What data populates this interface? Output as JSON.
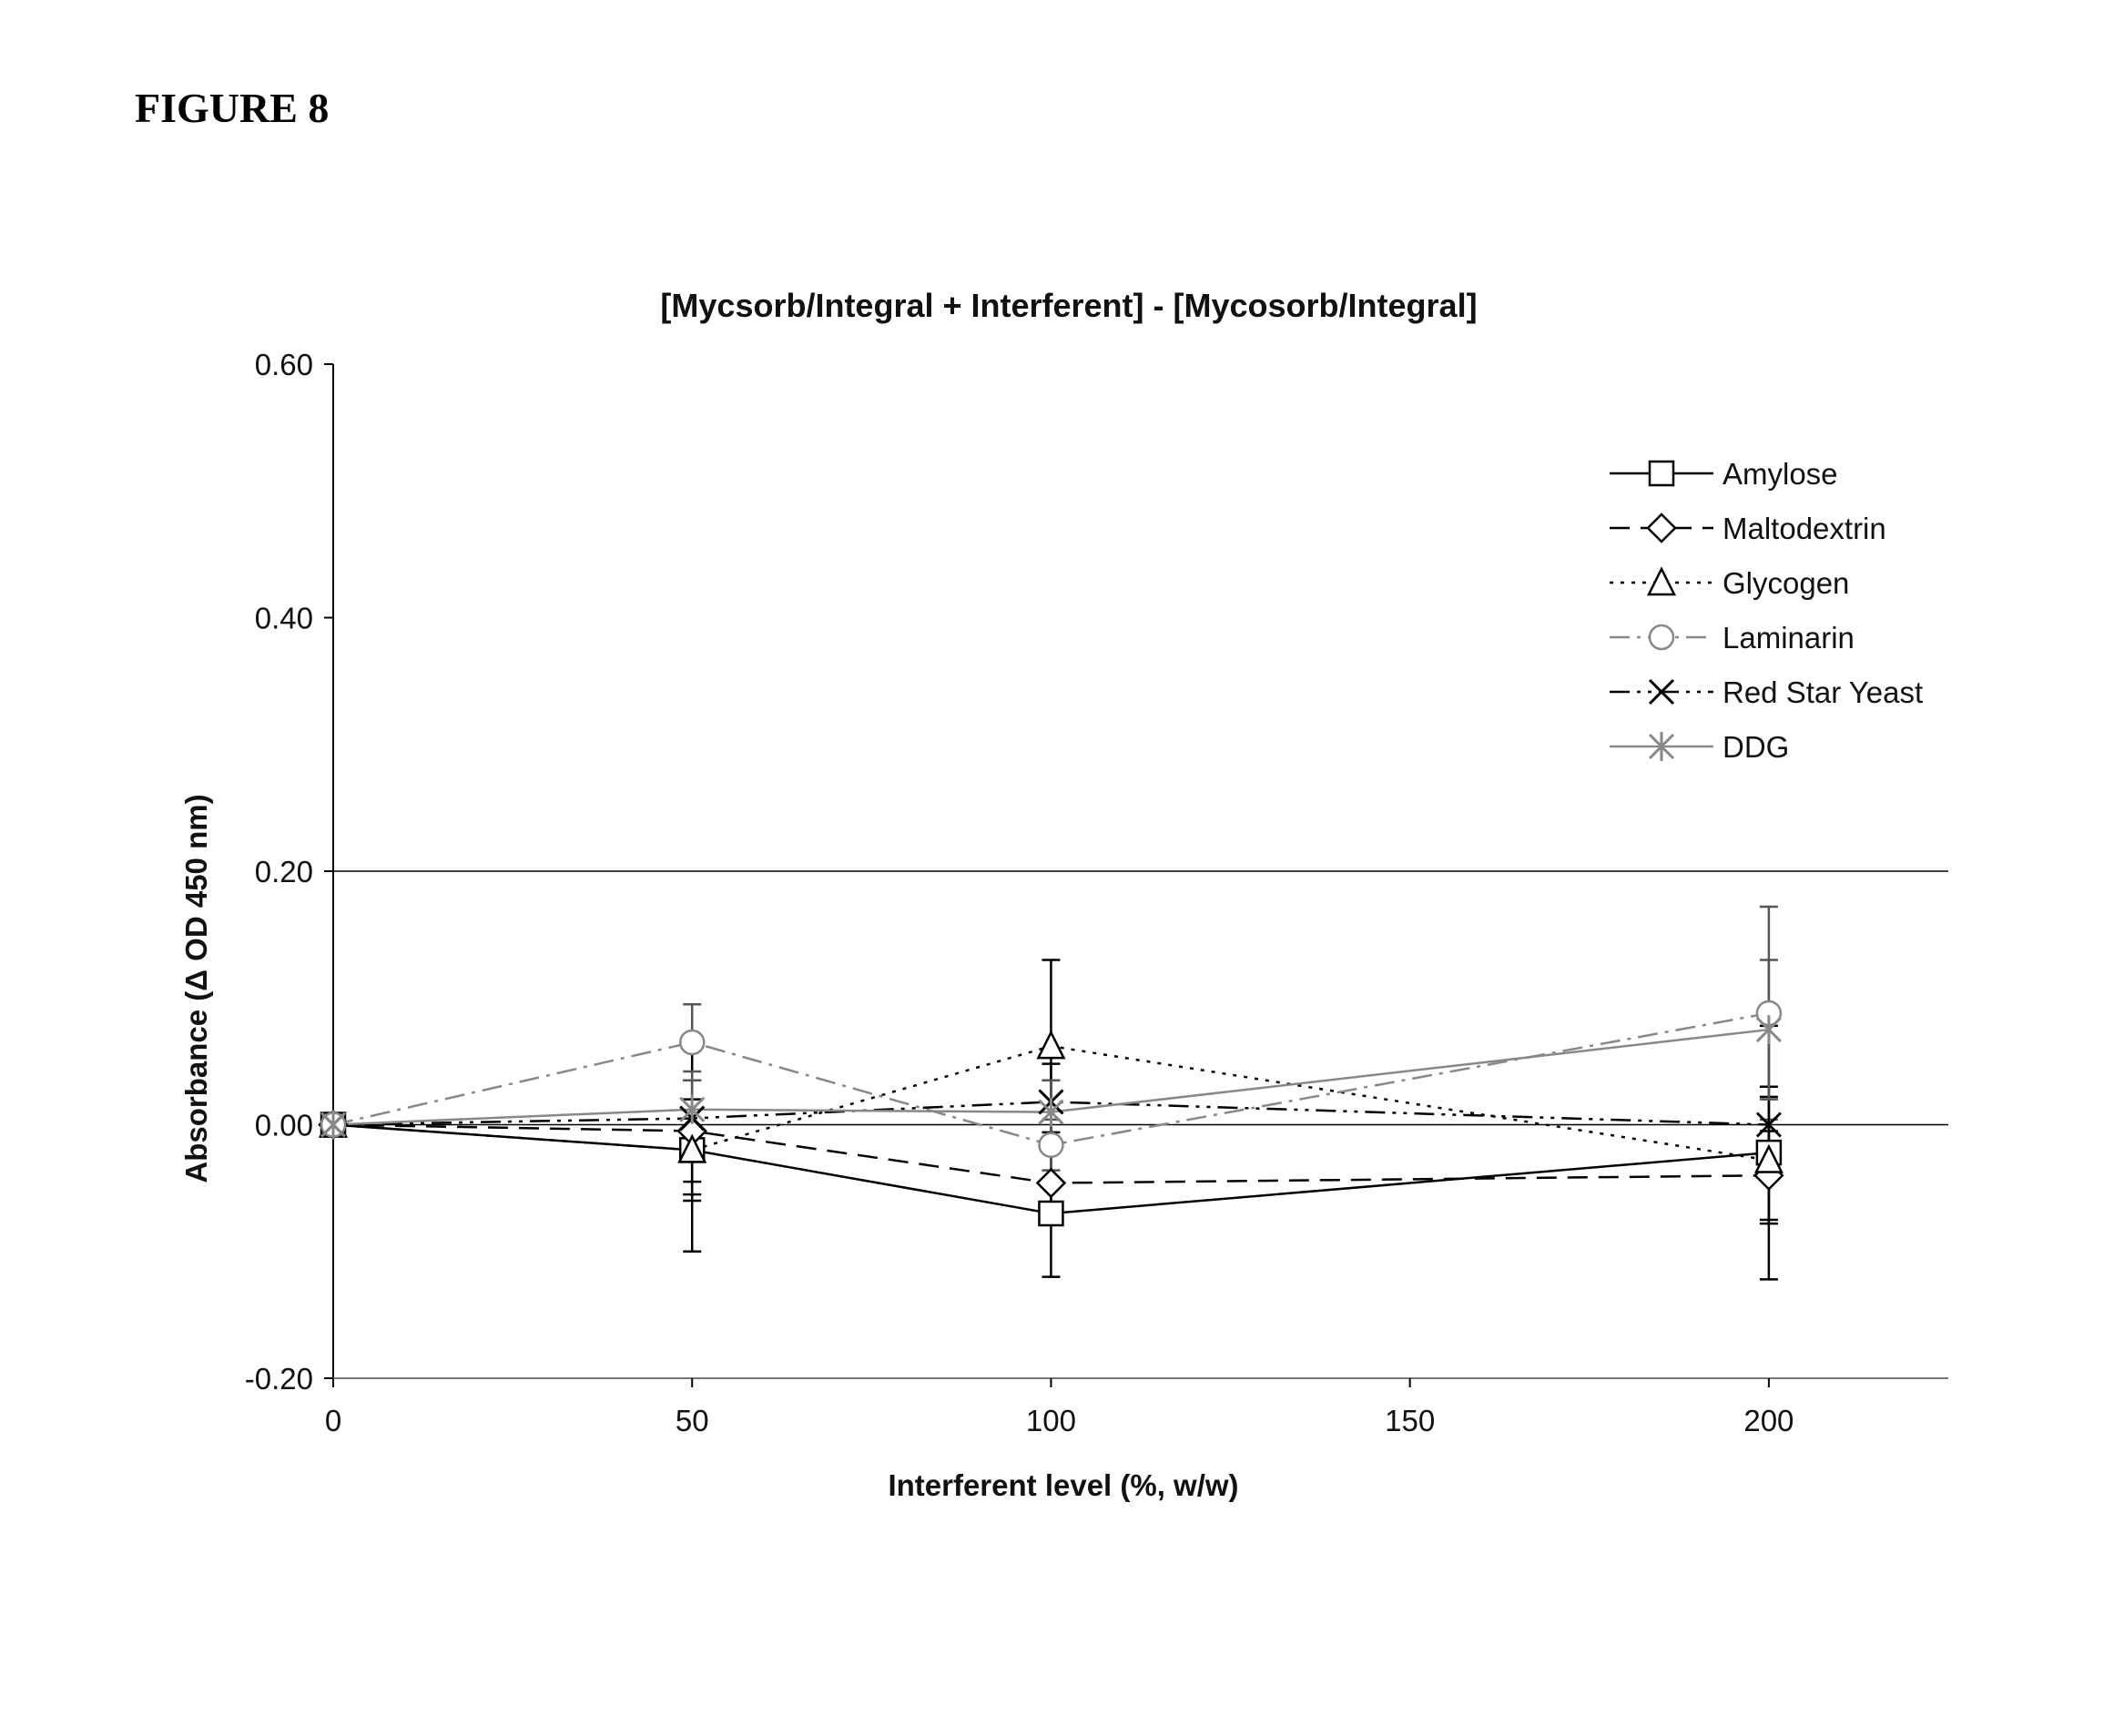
{
  "figure_label": "FIGURE 8",
  "chart_data": {
    "type": "line",
    "title": "[Mycsorb/Integral + Interferent] - [Mycosorb/Integral]",
    "xlabel": "Interferent level (%, w/w)",
    "ylabel": "Absorbance (Δ OD 450 nm)",
    "xlim": [
      0,
      225
    ],
    "ylim": [
      -0.2,
      0.6
    ],
    "x_ticks": [
      0,
      50,
      100,
      150,
      200
    ],
    "x_tick_labels": [
      "0",
      "50",
      "100",
      "150",
      "200"
    ],
    "y_ticks": [
      -0.2,
      0.0,
      0.2,
      0.4,
      0.6
    ],
    "y_tick_labels": [
      "-0.20",
      "0.00",
      "0.20",
      "0.40",
      "0.60"
    ],
    "gridlines_y": [
      0.2,
      0.0
    ],
    "legend_position": "top-right",
    "x": [
      0,
      50,
      100,
      200
    ],
    "series": [
      {
        "name": "Amylose",
        "marker": "square",
        "line": "solid",
        "color": "#000000",
        "values": [
          0.0,
          -0.02,
          -0.07,
          -0.022
        ],
        "errors": [
          0.0,
          0.04,
          0.05,
          0.1
        ]
      },
      {
        "name": "Maltodextrin",
        "marker": "diamond",
        "line": "dashed",
        "color": "#000000",
        "values": [
          0.0,
          -0.005,
          -0.046,
          -0.04
        ],
        "errors": [
          0.0,
          0.04,
          0.03,
          0.035
        ]
      },
      {
        "name": "Glycogen",
        "marker": "triangle",
        "line": "dotted",
        "color": "#000000",
        "values": [
          0.0,
          -0.02,
          0.062,
          -0.028
        ],
        "errors": [
          0.0,
          0.08,
          0.068,
          0.05
        ]
      },
      {
        "name": "Laminarin",
        "marker": "circle",
        "line": "dashdot",
        "color": "#888888",
        "values": [
          0.0,
          0.065,
          -0.016,
          0.088
        ],
        "errors": [
          0.0,
          0.03,
          0.02,
          0.084
        ]
      },
      {
        "name": "Red Star Yeast",
        "marker": "x",
        "line": "dashdotdot",
        "color": "#000000",
        "values": [
          0.0,
          0.005,
          0.018,
          0.0
        ],
        "errors": [
          0.0,
          0.06,
          0.03,
          0.03
        ]
      },
      {
        "name": "DDG",
        "marker": "asterisk",
        "line": "solid",
        "color": "#888888",
        "values": [
          0.0,
          0.012,
          0.01,
          0.075
        ],
        "errors": [
          0.0,
          0.03,
          0.025,
          0.055
        ]
      }
    ]
  }
}
